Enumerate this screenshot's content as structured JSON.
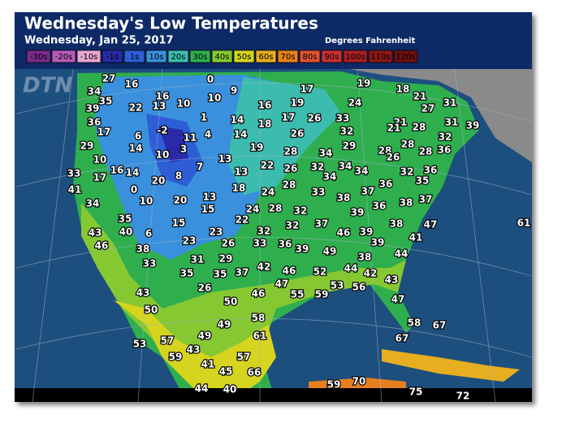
{
  "header": {
    "title": "Wednesday's Low Temperatures",
    "subtitle": "Wednesday, Jan 25, 2017",
    "units": "Degrees Fahrenheit",
    "watermark": "DTN"
  },
  "legend": [
    {
      "label": "-30s",
      "color": "#7a2a8c"
    },
    {
      "label": "-20s",
      "color": "#b45cb8"
    },
    {
      "label": "-10s",
      "color": "#e8a6d4"
    },
    {
      "label": "-1s",
      "color": "#2a2aa8"
    },
    {
      "label": "1s",
      "color": "#2e5ed6"
    },
    {
      "label": "10s",
      "color": "#3a90dc"
    },
    {
      "label": "20s",
      "color": "#3cbcae"
    },
    {
      "label": "30s",
      "color": "#2fae4e"
    },
    {
      "label": "40s",
      "color": "#86c832"
    },
    {
      "label": "50s",
      "color": "#d6d41e"
    },
    {
      "label": "60s",
      "color": "#e6ae20"
    },
    {
      "label": "70s",
      "color": "#e6801e"
    },
    {
      "label": "80s",
      "color": "#de5230"
    },
    {
      "label": "90s",
      "color": "#c83030"
    },
    {
      "label": "100s",
      "color": "#aa2020"
    },
    {
      "label": "110s",
      "color": "#8c1818"
    },
    {
      "label": "120s",
      "color": "#6e1010"
    }
  ],
  "temperatures": [
    27,
    16,
    0,
    9,
    17,
    19,
    18,
    34,
    16,
    10,
    21,
    35,
    39,
    22,
    13,
    10,
    16,
    19,
    24,
    27,
    31,
    36,
    1,
    14,
    18,
    17,
    26,
    33,
    21,
    28,
    31,
    39,
    17,
    6,
    -2,
    11,
    4,
    14,
    26,
    32,
    21,
    32,
    29,
    14,
    10,
    3,
    19,
    28,
    34,
    29,
    28,
    26,
    28,
    28,
    36,
    10,
    13,
    22,
    16,
    14,
    7,
    26,
    32,
    34,
    34,
    32,
    36,
    33,
    17,
    20,
    8,
    13,
    34,
    35,
    41,
    0,
    18,
    24,
    28,
    33,
    38,
    37,
    36,
    38,
    37,
    34,
    10,
    20,
    13,
    15,
    24,
    28,
    32,
    39,
    36,
    35,
    15,
    22,
    37,
    38,
    47,
    61,
    43,
    40,
    6,
    23,
    32,
    32,
    46,
    39,
    41,
    46,
    23,
    26,
    33,
    36,
    39,
    39,
    38,
    49,
    44,
    33,
    31,
    29,
    38,
    35,
    35,
    37,
    42,
    46,
    52,
    44,
    42,
    47,
    53,
    56,
    43,
    26,
    46,
    55,
    59,
    43,
    50,
    47,
    50,
    58,
    49,
    58,
    67,
    49,
    61,
    67,
    53,
    57,
    43,
    59,
    57,
    41,
    45,
    66,
    59,
    70,
    44,
    40,
    75,
    72
  ]
}
